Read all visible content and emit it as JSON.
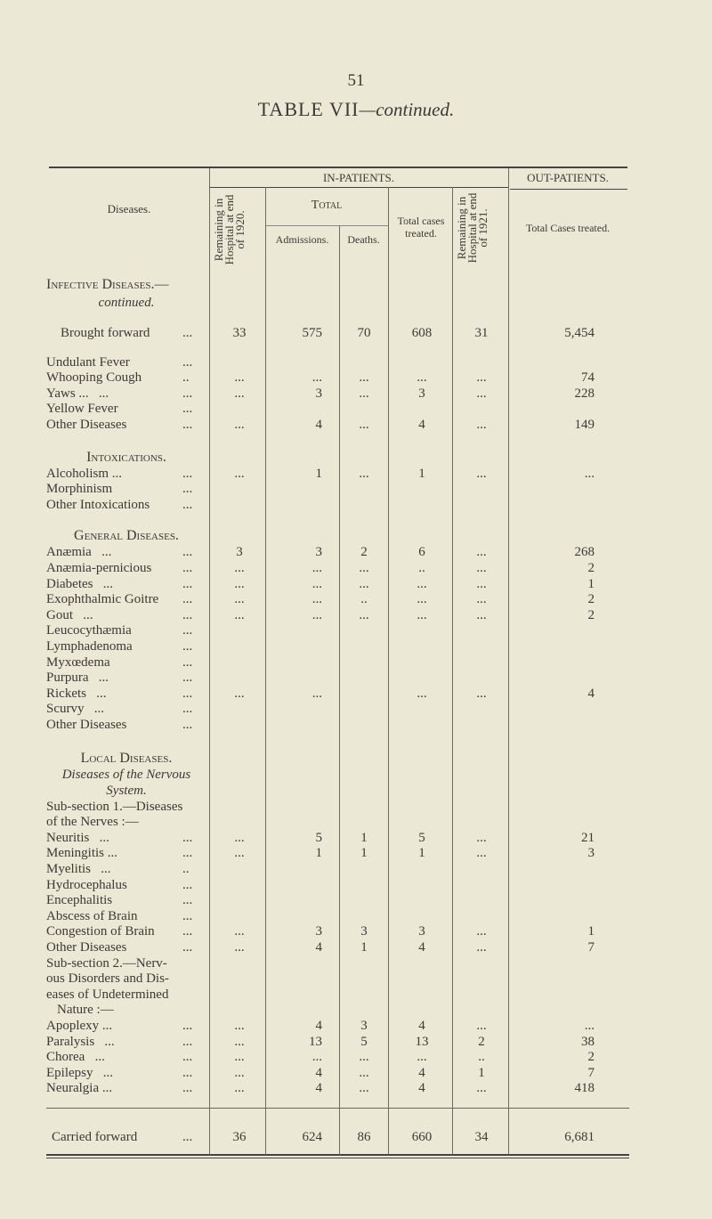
{
  "page_number": "51",
  "title": {
    "main": "TABLE VII",
    "suffix": "—continued."
  },
  "header": {
    "diseases": "Diseases.",
    "in_patients": "IN-PATIENTS.",
    "out_patients": "OUT-PATIENTS.",
    "remaining_start": "Remaining in Hospital at end of 1920.",
    "total": "Total",
    "admissions": "Admissions.",
    "deaths": "Deaths.",
    "total_cases": "Total cases treated.",
    "remaining_end": "Remaining in Hospital at end of 1921.",
    "out_total": "Total Cases treated."
  },
  "rows": [
    {
      "type": "spacer",
      "h": 22
    },
    {
      "type": "section",
      "label": "Infective Diseases.—",
      "align": "left"
    },
    {
      "type": "italic",
      "label": "continued."
    },
    {
      "type": "spacer",
      "h": 16
    },
    {
      "type": "data",
      "label": "Brought forward",
      "lead": "...",
      "indent": 16,
      "values": [
        "33",
        "575",
        "70",
        "608",
        "31",
        "5,454"
      ]
    },
    {
      "type": "spacer",
      "h": 15
    },
    {
      "type": "data",
      "label": "Undulant Fever",
      "lead": "...",
      "values": [
        "",
        "",
        "",
        "",
        "",
        ""
      ]
    },
    {
      "type": "data",
      "label": "Whooping Cough",
      "lead": "..",
      "values": [
        "...",
        "...",
        "...",
        "...",
        "...",
        "74"
      ]
    },
    {
      "type": "data",
      "label": "Yaws ...   ...",
      "lead": "...",
      "values": [
        "...",
        "3",
        "...",
        "3",
        "...",
        "228"
      ]
    },
    {
      "type": "data",
      "label": "Yellow Fever",
      "lead": "...",
      "values": [
        "",
        "",
        "",
        "",
        "",
        ""
      ]
    },
    {
      "type": "data",
      "label": "Other Diseases",
      "lead": "...",
      "values": [
        "...",
        "4",
        "...",
        "4",
        "...",
        "149"
      ]
    },
    {
      "type": "spacer",
      "h": 17
    },
    {
      "type": "section",
      "label": "Intoxications."
    },
    {
      "type": "data",
      "label": "Alcoholism ...",
      "lead": "...",
      "values": [
        "...",
        "1",
        "...",
        "1",
        "...",
        "..."
      ]
    },
    {
      "type": "data",
      "label": "Morphinism",
      "lead": "...",
      "values": [
        "",
        "",
        "",
        "",
        "",
        ""
      ]
    },
    {
      "type": "data",
      "label": "Other Intoxications",
      "lead": "...",
      "values": [
        "",
        "",
        "",
        "",
        "",
        ""
      ]
    },
    {
      "type": "spacer",
      "h": 16
    },
    {
      "type": "section",
      "label": "General Diseases."
    },
    {
      "type": "data",
      "label": "Anæmia   ...",
      "lead": "...",
      "values": [
        "3",
        "3",
        "2",
        "6",
        "...",
        "268"
      ]
    },
    {
      "type": "data",
      "label": "Anæmia-pernicious",
      "lead": "...",
      "values": [
        "...",
        "...",
        "...",
        "..",
        "...",
        "2"
      ]
    },
    {
      "type": "data",
      "label": "Diabetes   ...",
      "lead": "...",
      "values": [
        "...",
        "...",
        "...",
        "...",
        "...",
        "1"
      ]
    },
    {
      "type": "data",
      "label": "Exophthalmic Goitre",
      "lead": "...",
      "values": [
        "...",
        "...",
        "..",
        "...",
        "...",
        "2"
      ]
    },
    {
      "type": "data",
      "label": "Gout   ...",
      "lead": "...",
      "values": [
        "...",
        "...",
        "...",
        "...",
        "...",
        "2"
      ]
    },
    {
      "type": "data",
      "label": "Leucocythæmia",
      "lead": "...",
      "values": [
        "",
        "",
        "",
        "",
        "",
        ""
      ]
    },
    {
      "type": "data",
      "label": "Lymphadenoma",
      "lead": "...",
      "values": [
        "",
        "",
        "",
        "",
        "",
        ""
      ]
    },
    {
      "type": "data",
      "label": "Myxœdema",
      "lead": "...",
      "values": [
        "",
        "",
        "",
        "",
        "",
        ""
      ]
    },
    {
      "type": "data",
      "label": "Purpura   ...",
      "lead": "...",
      "values": [
        "",
        "",
        "",
        "",
        "",
        ""
      ]
    },
    {
      "type": "data",
      "label": "Rickets   ...",
      "lead": "...",
      "values": [
        "...",
        "...",
        "",
        "...",
        "...",
        "4"
      ]
    },
    {
      "type": "data",
      "label": "Scurvy   ...",
      "lead": "...",
      "values": [
        "",
        "",
        "",
        "",
        "",
        ""
      ]
    },
    {
      "type": "data",
      "label": "Other Diseases",
      "lead": "...",
      "values": [
        "",
        "",
        "",
        "",
        "",
        ""
      ]
    },
    {
      "type": "spacer",
      "h": 19
    },
    {
      "type": "section",
      "label": "Local Diseases."
    },
    {
      "type": "italic",
      "label": "Diseases of the Nervous"
    },
    {
      "type": "italic",
      "label": "System."
    },
    {
      "type": "text",
      "label": "Sub-section 1.—Diseases"
    },
    {
      "type": "text",
      "label": "of the Nerves :—"
    },
    {
      "type": "data",
      "label": "Neuritis   ...",
      "lead": "...",
      "values": [
        "...",
        "5",
        "1",
        "5",
        "...",
        "21"
      ]
    },
    {
      "type": "data",
      "label": "Meningitis ...",
      "lead": "...",
      "values": [
        "...",
        "1",
        "1",
        "1",
        "...",
        "3"
      ]
    },
    {
      "type": "data",
      "label": "Myelitis   ...",
      "lead": "..",
      "values": [
        "",
        "",
        "",
        "",
        "",
        ""
      ]
    },
    {
      "type": "data",
      "label": "Hydrocephalus",
      "lead": "...",
      "values": [
        "",
        "",
        "",
        "",
        "",
        ""
      ]
    },
    {
      "type": "data",
      "label": "Encephalitis",
      "lead": "...",
      "values": [
        "",
        "",
        "",
        "",
        "",
        ""
      ]
    },
    {
      "type": "data",
      "label": "Abscess of Brain",
      "lead": "...",
      "values": [
        "",
        "",
        "",
        "",
        "",
        ""
      ]
    },
    {
      "type": "data",
      "label": "Congestion of Brain",
      "lead": "...",
      "values": [
        "...",
        "3",
        "3",
        "3",
        "...",
        "1"
      ]
    },
    {
      "type": "data",
      "label": "Other Diseases",
      "lead": "...",
      "values": [
        "...",
        "4",
        "1",
        "4",
        "...",
        "7"
      ]
    },
    {
      "type": "text",
      "label": "Sub-section 2.—Nerv-"
    },
    {
      "type": "text",
      "label": "ous Disorders and Dis-"
    },
    {
      "type": "text",
      "label": "eases of Undetermined"
    },
    {
      "type": "text",
      "label": "Nature :—",
      "indent": 12
    },
    {
      "type": "data",
      "label": "Apoplexy ...",
      "lead": "...",
      "values": [
        "...",
        "4",
        "3",
        "4",
        "...",
        "..."
      ]
    },
    {
      "type": "data",
      "label": "Paralysis   ...",
      "lead": "...",
      "values": [
        "...",
        "13",
        "5",
        "13",
        "2",
        "38"
      ]
    },
    {
      "type": "data",
      "label": "Chorea   ...",
      "lead": "...",
      "values": [
        "...",
        "...",
        "...",
        "...",
        "..",
        "2"
      ]
    },
    {
      "type": "data",
      "label": "Epilepsy   ...",
      "lead": "...",
      "values": [
        "...",
        "4",
        "...",
        "4",
        "1",
        "7"
      ]
    },
    {
      "type": "data",
      "label": "Neuralgia ...",
      "lead": "...",
      "values": [
        "...",
        "4",
        "...",
        "4",
        "...",
        "418"
      ]
    }
  ],
  "carried_forward": {
    "label": "Carried forward",
    "lead": "...",
    "values": [
      "36",
      "624",
      "86",
      "660",
      "34",
      "6,681"
    ]
  }
}
